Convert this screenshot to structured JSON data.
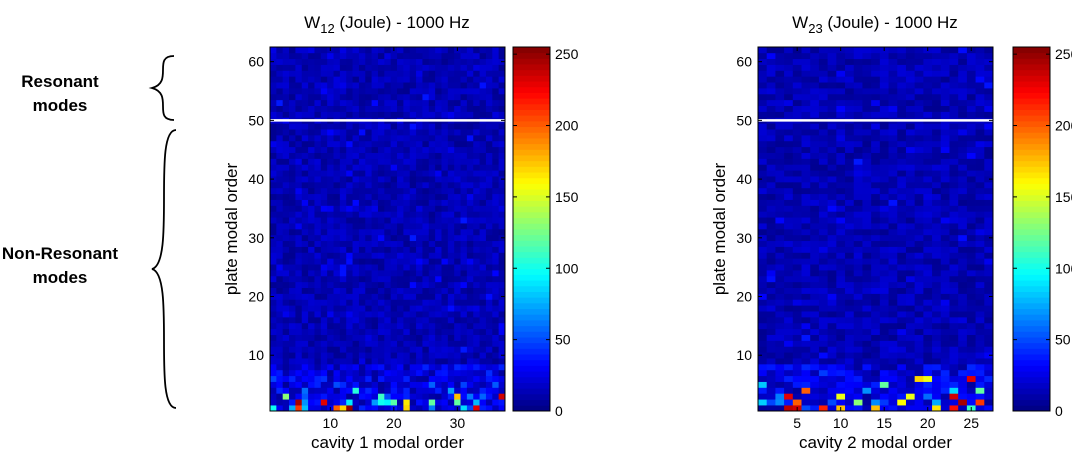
{
  "annotations": {
    "resonant": "Resonant modes",
    "nonresonant": "Non-Resonant modes"
  },
  "colormap": "jet",
  "chart_data": [
    {
      "type": "heatmap",
      "title": "W12 (Joule) - 1000 Hz",
      "title_base": "W",
      "title_sub": "12",
      "title_rest": " (Joule) - 1000 Hz",
      "xlabel": "cavity 1 modal order",
      "ylabel": "plate modal order",
      "x_ticks": [
        10,
        20,
        30
      ],
      "y_ticks": [
        10,
        20,
        30,
        40,
        50,
        60
      ],
      "xlim": [
        0.5,
        37.5
      ],
      "ylim": [
        0.5,
        62.5
      ],
      "n_cols": 37,
      "n_rows": 62,
      "color_range": [
        0,
        255
      ],
      "colorbar_ticks": [
        0,
        50,
        100,
        150,
        200,
        250
      ],
      "divider_line_y": 50,
      "divider_color": "#ffffff",
      "hot_cells": [
        {
          "col": 5,
          "row": 1,
          "v": 210
        },
        {
          "col": 5,
          "row": 2,
          "v": 245
        },
        {
          "col": 9,
          "row": 2,
          "v": 230
        },
        {
          "col": 11,
          "row": 1,
          "v": 200
        },
        {
          "col": 13,
          "row": 1,
          "v": 250
        },
        {
          "col": 12,
          "row": 1,
          "v": 170
        },
        {
          "col": 22,
          "row": 1,
          "v": 170
        },
        {
          "col": 22,
          "row": 2,
          "v": 165
        },
        {
          "col": 30,
          "row": 3,
          "v": 175
        },
        {
          "col": 30,
          "row": 2,
          "v": 120
        },
        {
          "col": 33,
          "row": 1,
          "v": 230
        },
        {
          "col": 37,
          "row": 3,
          "v": 235
        },
        {
          "col": 3,
          "row": 3,
          "v": 130
        },
        {
          "col": 18,
          "row": 3,
          "v": 110
        },
        {
          "col": 26,
          "row": 2,
          "v": 120
        },
        {
          "col": 14,
          "row": 4,
          "v": 105
        }
      ],
      "notes": "values concentrated at low plate modal order (rows 1-8); most cells near 0-30"
    },
    {
      "type": "heatmap",
      "title": "W23 (Joule) - 1000 Hz",
      "title_base": "W",
      "title_sub": "23",
      "title_rest": " (Joule) - 1000 Hz",
      "xlabel": "cavity 2 modal order",
      "ylabel": "plate modal order",
      "x_ticks": [
        5,
        10,
        15,
        20,
        25
      ],
      "y_ticks": [
        10,
        20,
        30,
        40,
        50,
        60
      ],
      "xlim": [
        0.5,
        27.5
      ],
      "ylim": [
        0.5,
        62.5
      ],
      "n_cols": 27,
      "n_rows": 62,
      "color_range": [
        0,
        255
      ],
      "colorbar_ticks": [
        0,
        50,
        100,
        150,
        200,
        250
      ],
      "divider_line_y": 50,
      "divider_color": "#ffffff",
      "hot_cells": [
        {
          "col": 4,
          "row": 1,
          "v": 240
        },
        {
          "col": 4,
          "row": 3,
          "v": 230
        },
        {
          "col": 5,
          "row": 1,
          "v": 235
        },
        {
          "col": 5,
          "row": 2,
          "v": 200
        },
        {
          "col": 6,
          "row": 4,
          "v": 200
        },
        {
          "col": 8,
          "row": 1,
          "v": 215
        },
        {
          "col": 10,
          "row": 1,
          "v": 175
        },
        {
          "col": 10,
          "row": 3,
          "v": 155
        },
        {
          "col": 12,
          "row": 2,
          "v": 130
        },
        {
          "col": 14,
          "row": 1,
          "v": 175
        },
        {
          "col": 15,
          "row": 5,
          "v": 120
        },
        {
          "col": 17,
          "row": 2,
          "v": 160
        },
        {
          "col": 18,
          "row": 3,
          "v": 155
        },
        {
          "col": 19,
          "row": 6,
          "v": 170
        },
        {
          "col": 20,
          "row": 6,
          "v": 155
        },
        {
          "col": 21,
          "row": 1,
          "v": 165
        },
        {
          "col": 23,
          "row": 1,
          "v": 220
        },
        {
          "col": 23,
          "row": 3,
          "v": 235
        },
        {
          "col": 24,
          "row": 2,
          "v": 245
        },
        {
          "col": 25,
          "row": 6,
          "v": 230
        },
        {
          "col": 26,
          "row": 2,
          "v": 210
        },
        {
          "col": 26,
          "row": 4,
          "v": 120
        }
      ],
      "notes": "values concentrated at low plate modal order (rows 1-8); most cells near 0-30"
    }
  ]
}
